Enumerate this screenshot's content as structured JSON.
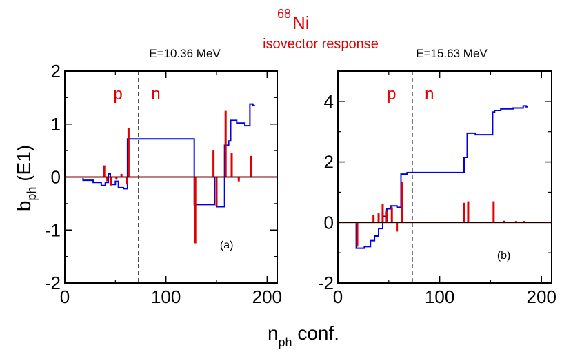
{
  "header": {
    "nucleus_mass_number": "68",
    "nucleus_symbol": "Ni",
    "subtitle": "isovector response"
  },
  "axes": {
    "ylabel_main": "b",
    "ylabel_sub": "ph",
    "ylabel_tail": " (E1)",
    "xlabel_main": "n",
    "xlabel_sub": "ph",
    "xlabel_tail": " conf."
  },
  "colors": {
    "cumulative": "#0000e0",
    "strength": "#e00000",
    "axis": "#000000"
  },
  "chart_data": [
    {
      "type": "line",
      "panel_label": "(a)",
      "title": "E=10.36 MeV",
      "xlim": [
        0,
        210
      ],
      "ylim": [
        -2,
        2
      ],
      "xticks": [
        0,
        100,
        200
      ],
      "yticks": [
        -2,
        -1,
        0,
        1,
        2
      ],
      "region_labels": {
        "left": "p",
        "right": "n"
      },
      "boundary_x": 73,
      "zero_line": true,
      "series": [
        {
          "kind": "cumulative",
          "points": [
            [
              18,
              -0.02
            ],
            [
              18,
              -0.06
            ],
            [
              28,
              -0.06
            ],
            [
              28,
              -0.1
            ],
            [
              36,
              -0.1
            ],
            [
              36,
              -0.16
            ],
            [
              40,
              -0.16
            ],
            [
              40,
              -0.1
            ],
            [
              43,
              -0.1
            ],
            [
              43,
              0.06
            ],
            [
              45,
              0.06
            ],
            [
              45,
              -0.14
            ],
            [
              50,
              -0.14
            ],
            [
              50,
              -0.08
            ],
            [
              53,
              -0.08
            ],
            [
              53,
              -0.2
            ],
            [
              58,
              -0.2
            ],
            [
              58,
              -0.22
            ],
            [
              62,
              -0.22
            ],
            [
              62,
              0.72
            ],
            [
              128,
              0.72
            ],
            [
              128,
              -0.52
            ],
            [
              148,
              -0.52
            ],
            [
              148,
              0.0
            ],
            [
              150,
              0.0
            ],
            [
              150,
              -0.56
            ],
            [
              158,
              -0.56
            ],
            [
              158,
              0.6
            ],
            [
              162,
              0.6
            ],
            [
              162,
              0.68
            ],
            [
              164,
              0.68
            ],
            [
              164,
              1.07
            ],
            [
              170,
              1.07
            ],
            [
              170,
              1.02
            ],
            [
              178,
              1.02
            ],
            [
              178,
              0.97
            ],
            [
              183,
              0.97
            ],
            [
              183,
              1.38
            ],
            [
              186,
              1.38
            ],
            [
              186,
              1.35
            ],
            [
              188,
              1.35
            ]
          ]
        },
        {
          "kind": "strength",
          "x": [
            39,
            42,
            46,
            51,
            56,
            61,
            63,
            129,
            147,
            150,
            159,
            165,
            172,
            184
          ],
          "values": [
            0.22,
            -0.08,
            -0.16,
            -0.05,
            0.06,
            -0.14,
            0.93,
            -1.25,
            0.5,
            -0.55,
            1.25,
            0.45,
            -0.08,
            0.4
          ]
        }
      ]
    },
    {
      "type": "line",
      "panel_label": "(b)",
      "title": "E=15.63 MeV",
      "xlim": [
        0,
        210
      ],
      "ylim": [
        -2,
        5
      ],
      "xticks": [
        0,
        100,
        200
      ],
      "yticks": [
        -2,
        0,
        2,
        4
      ],
      "region_labels": {
        "left": "p",
        "right": "n"
      },
      "boundary_x": 73,
      "zero_line": true,
      "series": [
        {
          "kind": "cumulative",
          "points": [
            [
              18,
              -0.02
            ],
            [
              18,
              -0.85
            ],
            [
              26,
              -0.85
            ],
            [
              26,
              -0.8
            ],
            [
              32,
              -0.8
            ],
            [
              32,
              -0.6
            ],
            [
              36,
              -0.6
            ],
            [
              36,
              -0.45
            ],
            [
              40,
              -0.45
            ],
            [
              40,
              -0.2
            ],
            [
              44,
              -0.2
            ],
            [
              44,
              0.2
            ],
            [
              48,
              0.2
            ],
            [
              48,
              0.45
            ],
            [
              52,
              0.45
            ],
            [
              52,
              0.55
            ],
            [
              58,
              0.55
            ],
            [
              58,
              0.5
            ],
            [
              62,
              0.5
            ],
            [
              62,
              1.6
            ],
            [
              68,
              1.6
            ],
            [
              68,
              1.65
            ],
            [
              124,
              1.65
            ],
            [
              124,
              2.15
            ],
            [
              127,
              2.15
            ],
            [
              127,
              2.95
            ],
            [
              135,
              2.95
            ],
            [
              135,
              2.9
            ],
            [
              152,
              2.9
            ],
            [
              152,
              3.65
            ],
            [
              154,
              3.65
            ],
            [
              154,
              3.7
            ],
            [
              160,
              3.7
            ],
            [
              160,
              3.75
            ],
            [
              172,
              3.75
            ],
            [
              172,
              3.78
            ],
            [
              182,
              3.78
            ],
            [
              182,
              3.85
            ],
            [
              185,
              3.85
            ],
            [
              185,
              3.82
            ],
            [
              187,
              3.82
            ]
          ]
        },
        {
          "kind": "strength",
          "x": [
            19,
            35,
            40,
            44,
            48,
            53,
            58,
            63,
            124,
            128,
            153,
            163,
            175,
            183
          ],
          "values": [
            -0.8,
            0.25,
            0.3,
            0.6,
            0.4,
            0.5,
            -0.3,
            1.35,
            0.65,
            0.7,
            0.7,
            0.06,
            0.05,
            0.05
          ]
        }
      ]
    }
  ]
}
